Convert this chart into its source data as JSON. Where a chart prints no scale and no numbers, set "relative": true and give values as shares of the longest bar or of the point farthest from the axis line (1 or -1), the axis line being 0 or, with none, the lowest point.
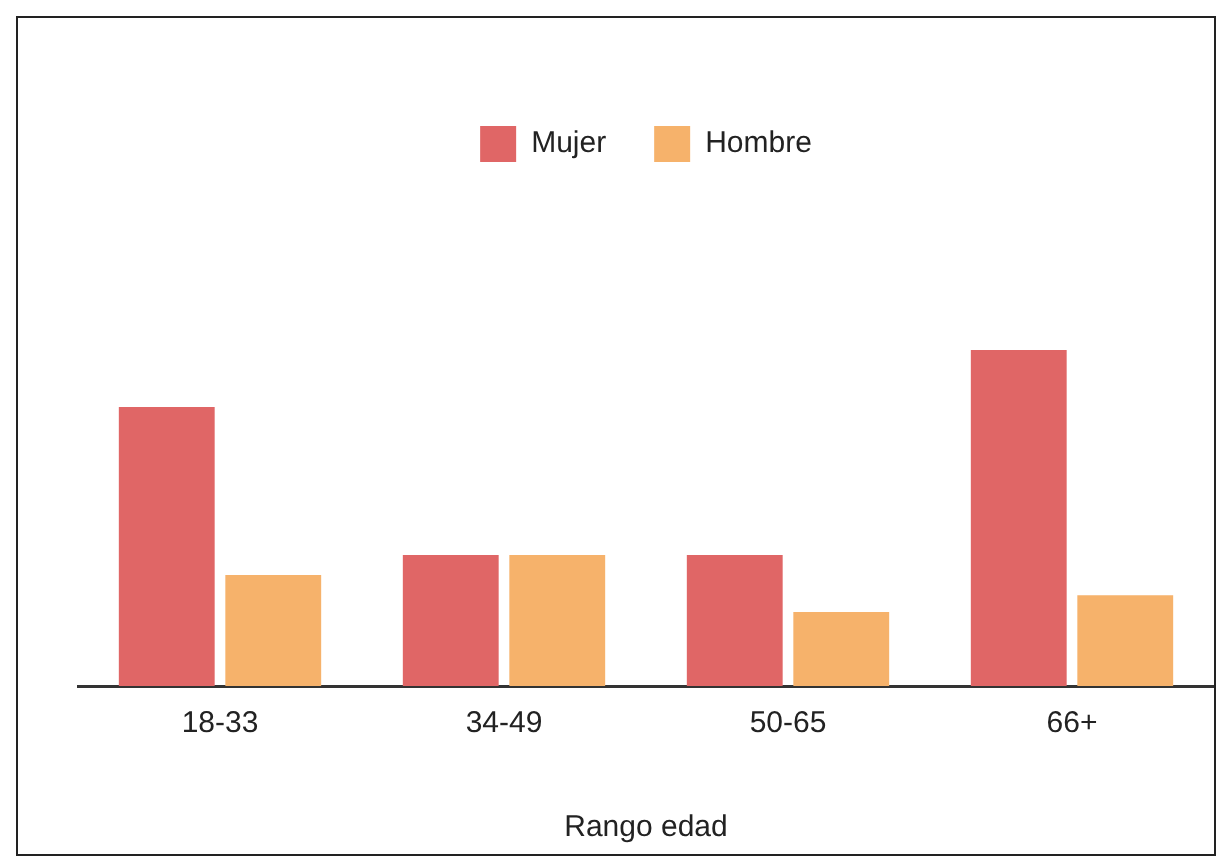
{
  "chart_data": {
    "type": "bar",
    "xlabel": "Rango edad",
    "categories": [
      "18-33",
      "34-49",
      "50-65",
      "66+"
    ],
    "relative": true,
    "legend": "top",
    "series": [
      {
        "name": "Mujer",
        "color": "#e06666",
        "values": [
          0.83,
          0.39,
          0.39,
          1
        ]
      },
      {
        "name": "Hombre",
        "color": "#f6b26b",
        "values": [
          0.33,
          0.39,
          0.22,
          0.27
        ]
      }
    ]
  }
}
